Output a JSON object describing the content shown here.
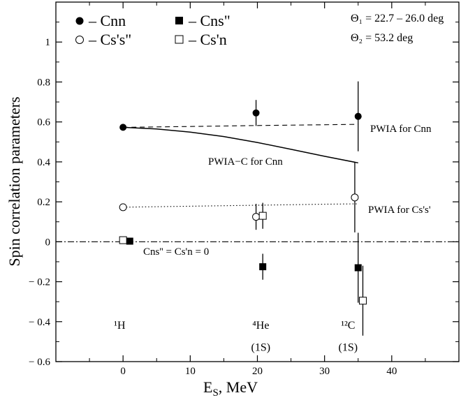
{
  "chart_data": {
    "type": "scatter",
    "xlabel": "E_S, MeV",
    "ylabel": "Spin correlation parameters",
    "xlim": [
      -10,
      50
    ],
    "ylim": [
      -0.6,
      1.2
    ],
    "x_ticks": [
      0,
      10,
      20,
      30,
      40
    ],
    "x_tick_labels": [
      "0",
      "10",
      "20",
      "30",
      "40"
    ],
    "y_ticks": [
      -0.6,
      -0.4,
      -0.2,
      0,
      0.2,
      0.4,
      0.6,
      0.8,
      1
    ],
    "y_tick_labels": [
      "− 0.6",
      "− 0.4",
      "− 0.2",
      "0",
      "0.2",
      "0.4",
      "0.6",
      "0.8",
      "1"
    ],
    "grid": false,
    "legend_position": "top-left",
    "series": [
      {
        "name": "– Cnn",
        "marker": "filled-circle",
        "points": [
          {
            "x": 0,
            "y": 0.573,
            "err": 0.005
          },
          {
            "x": 19.8,
            "y": 0.645,
            "err": 0.065
          },
          {
            "x": 35.0,
            "y": 0.628,
            "err": 0.175
          }
        ]
      },
      {
        "name": "– Cns\"",
        "marker": "filled-square",
        "points": [
          {
            "x": 1.0,
            "y": 0.003,
            "err": 0.005
          },
          {
            "x": 20.8,
            "y": -0.125,
            "err": 0.065
          },
          {
            "x": 35.0,
            "y": -0.13,
            "err": 0.175
          }
        ]
      },
      {
        "name": "– Cs's\"",
        "marker": "open-circle",
        "points": [
          {
            "x": 0,
            "y": 0.173,
            "err": 0.005
          },
          {
            "x": 19.8,
            "y": 0.125,
            "err": 0.065
          },
          {
            "x": 34.5,
            "y": 0.222,
            "err": 0.175
          }
        ]
      },
      {
        "name": "– Cs'n",
        "marker": "open-square",
        "points": [
          {
            "x": 0,
            "y": 0.008,
            "err": 0.005
          },
          {
            "x": 20.8,
            "y": 0.13,
            "err": 0.065
          },
          {
            "x": 35.7,
            "y": -0.295,
            "err": 0.175
          }
        ]
      }
    ],
    "curves": [
      {
        "label": "PWIA for Cnn",
        "style": "dashed",
        "x": [
          0,
          10,
          20,
          30,
          35
        ],
        "y": [
          0.573,
          0.577,
          0.582,
          0.586,
          0.588
        ]
      },
      {
        "label": "PWIA−C for Cnn",
        "style": "solid",
        "x": [
          0,
          5,
          10,
          15,
          20,
          25,
          30,
          35
        ],
        "y": [
          0.573,
          0.565,
          0.549,
          0.527,
          0.497,
          0.463,
          0.428,
          0.395
        ]
      },
      {
        "label": "PWIA for Cs's'",
        "style": "dotted",
        "x": [
          0,
          10,
          20,
          30,
          35
        ],
        "y": [
          0.173,
          0.178,
          0.183,
          0.188,
          0.19
        ]
      },
      {
        "label": "Cns'' = Cs'n = 0",
        "style": "dashdot",
        "x": [
          -10,
          50
        ],
        "y": [
          0,
          0
        ]
      }
    ],
    "annotations": {
      "theta1": "Θ₁ = 22.7 – 26.0 deg",
      "theta2": "Θ₂ = 53.2 deg",
      "nuclei": [
        {
          "text": "¹H",
          "x": -0.5,
          "y": -0.435
        },
        {
          "text": "⁴He",
          "x": 20.5,
          "y": -0.435
        },
        {
          "text": "(1S)",
          "x": 20.5,
          "y": -0.545
        },
        {
          "text": "¹²C",
          "x": 33.5,
          "y": -0.435
        },
        {
          "text": "(1S)",
          "x": 33.5,
          "y": -0.545
        }
      ]
    }
  }
}
